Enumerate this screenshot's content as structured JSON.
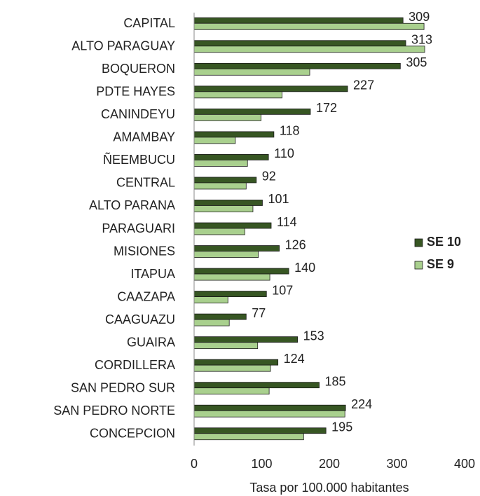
{
  "chart_data": {
    "type": "bar",
    "orientation": "horizontal",
    "categories": [
      "CAPITAL",
      "ALTO PARAGUAY",
      "BOQUERON",
      "PDTE HAYES",
      "CANINDEYU",
      "AMAMBAY",
      "ÑEEMBUCU",
      "CENTRAL",
      "ALTO PARANA",
      "PARAGUARI",
      "MISIONES",
      "ITAPUA",
      "CAAZAPA",
      "CAAGUAZU",
      "GUAIRA",
      "CORDILLERA",
      "SAN PEDRO SUR",
      "SAN PEDRO NORTE",
      "CONCEPCION"
    ],
    "series": [
      {
        "name": "SE 10",
        "color": "#375623",
        "show_labels": true,
        "values": [
          309,
          313,
          305,
          227,
          172,
          118,
          110,
          92,
          101,
          114,
          126,
          140,
          107,
          77,
          153,
          124,
          185,
          224,
          195
        ]
      },
      {
        "name": "SE 9",
        "color": "#a9d08e",
        "show_labels": false,
        "values": [
          340,
          341,
          171,
          130,
          99,
          61,
          79,
          77,
          87,
          75,
          95,
          112,
          50,
          52,
          94,
          113,
          111,
          223,
          162
        ]
      }
    ],
    "xlim": [
      0,
      400
    ],
    "xticks": [
      0,
      100,
      200,
      300,
      400
    ],
    "xlabel": "Tasa por 100.000 habitantes",
    "legend": "right",
    "grid": false
  }
}
